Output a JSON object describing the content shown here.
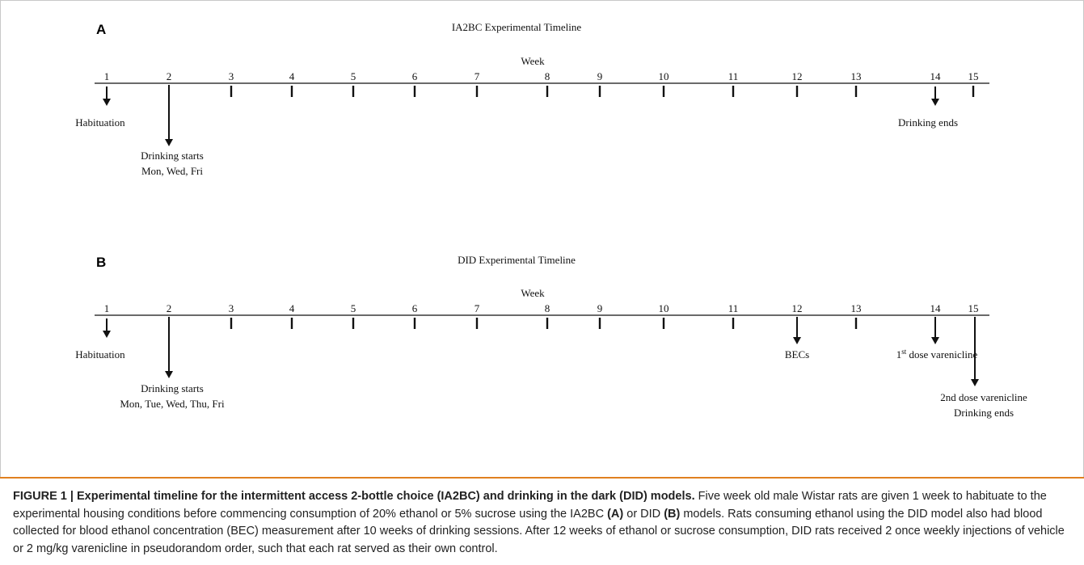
{
  "panels": [
    {
      "letter": "A",
      "title": "IA2BC Experimental Timeline",
      "axis_label": "Week",
      "weeks": [
        "1",
        "2",
        "3",
        "4",
        "5",
        "6",
        "7",
        "8",
        "9",
        "10",
        "11",
        "12",
        "13",
        "14",
        "15"
      ],
      "events": [
        {
          "week": 1,
          "lines": [
            "Habituation"
          ]
        },
        {
          "week": 2,
          "lines": [
            "Drinking  starts",
            "Mon, Wed, Fri"
          ]
        },
        {
          "week": 14,
          "lines": [
            "Drinking  ends"
          ]
        }
      ]
    },
    {
      "letter": "B",
      "title": "DID Experimental  Timeline",
      "axis_label": "Week",
      "weeks": [
        "1",
        "2",
        "3",
        "4",
        "5",
        "6",
        "7",
        "8",
        "9",
        "10",
        "11",
        "12",
        "13",
        "14",
        "15"
      ],
      "events": [
        {
          "week": 1,
          "lines": [
            "Habituation"
          ]
        },
        {
          "week": 2,
          "lines": [
            "Drinking  starts",
            "Mon, Tue,  Wed, Thu,  Fri"
          ]
        },
        {
          "week": 12,
          "lines": [
            "BECs"
          ]
        },
        {
          "week": 14,
          "lines": [
            "1st dose varenicline"
          ]
        },
        {
          "week": 15,
          "lines": [
            "2nd dose varenicline",
            "Drinking ends"
          ]
        }
      ]
    }
  ],
  "caption": {
    "label": "FIGURE 1 | Experimental timeline for the intermittent access 2-bottle choice (IA2BC) and drinking in the dark (DID) models.",
    "t1": " Five week old male Wistar rats are given 1 week to habituate to the experimental housing conditions before commencing consumption of 20% ethanol or 5% sucrose using the IA2BC ",
    "ref_a": "(A)",
    "t2": " or DID ",
    "ref_b": "(B)",
    "t3": " models. Rats consuming ethanol using the DID model also had blood collected for blood ethanol concentration (BEC) measurement after 10 weeks of drinking sessions. After 12 weeks of ethanol or sucrose consumption, DID rats received 2 once weekly injections of vehicle or 2 mg/kg varenicline in pseudorandom order, such that each rat served as their own control."
  }
}
